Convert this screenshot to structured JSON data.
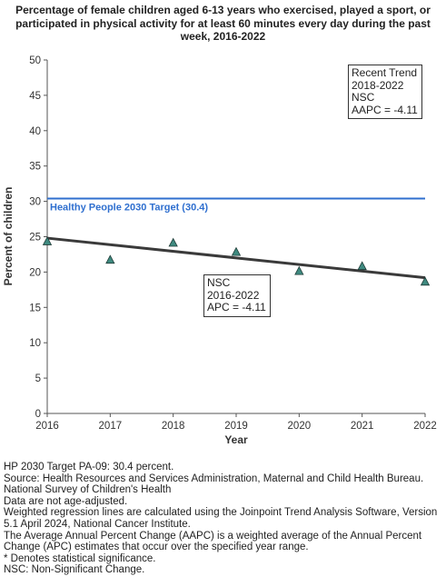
{
  "title_lines": [
    "Percentage of female children aged 6-13 years who exercised, played a sport, or",
    "participated in physical activity for at least 60 minutes every day during the past",
    "week, 2016-2022"
  ],
  "chart_data": {
    "type": "scatter",
    "title": "Percentage of female children aged 6-13 years who exercised, played a sport, or participated in physical activity for at least 60 minutes every day during the past week, 2016-2022",
    "xlabel": "Year",
    "ylabel": "Percent of children",
    "x": [
      2016,
      2017,
      2018,
      2019,
      2020,
      2021,
      2022
    ],
    "x_ticks": [
      "2016",
      "2017",
      "2018",
      "2019",
      "2020",
      "2021",
      "2022"
    ],
    "xlim": [
      2016,
      2022
    ],
    "ylim": [
      0,
      50
    ],
    "y_ticks": [
      "0",
      "5",
      "10",
      "15",
      "20",
      "25",
      "30",
      "35",
      "40",
      "45",
      "50"
    ],
    "grid": false,
    "series": [
      {
        "values": [
          24.3,
          21.7,
          24.1,
          22.8,
          20.1,
          20.8,
          18.6
        ],
        "color": "#3f8a80",
        "marker": "triangle"
      }
    ],
    "trend_line": {
      "x": [
        2016,
        2022
      ],
      "y": [
        24.8,
        19.2
      ],
      "color": "#3a3a3a"
    },
    "target": {
      "value": 30.4,
      "label": "Healthy People 2030 Target (30.4)",
      "color": "#2f6fcf"
    }
  },
  "annotations": {
    "recent_trend": [
      "Recent Trend",
      "2018-2022",
      "NSC",
      "AAPC = -4.11"
    ],
    "segment_trend": [
      "NSC",
      "2016-2022",
      "APC = -4.11"
    ]
  },
  "footnotes": [
    "HP 2030 Target PA-09: 30.4 percent.",
    "Source: Health Resources and Services Administration, Maternal and Child Health Bureau. National Survey of Children's Health",
    "Data are not age-adjusted.",
    "Weighted regression lines are calculated using the Joinpoint Trend Analysis Software, Version 5.1 April 2024, National Cancer Institute.",
    "The Average Annual Percent Change (AAPC) is a weighted average of the Annual Percent Change (APC) estimates that occur over the specified year range.",
    "* Denotes statistical significance.",
    "NSC: Non-Significant Change."
  ]
}
